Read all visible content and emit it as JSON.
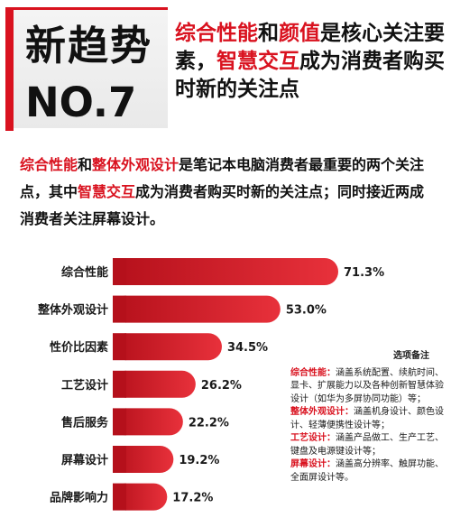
{
  "header": {
    "badge_title": "新趋势",
    "badge_number": "NO.7",
    "headline": {
      "hl1": "综合性能",
      "t1": "和",
      "hl2": "颜值",
      "t2": "是核心关注要素，",
      "hl3": "智慧交互",
      "t3": "成为消费者购买时新的关注点"
    }
  },
  "intro": {
    "hl1": "综合性能",
    "t1": "和",
    "hl2": "整体外观设计",
    "t2": "是笔记本电脑消费者最重要的两个关注点，其中",
    "hl3": "智慧交互",
    "t3": "成为消费者购买时新的关注点；同时接近两成消费者关注屏幕设计。"
  },
  "colors": {
    "accent": "#d9121f",
    "bar_dark": "#b5101b",
    "bar_light": "#e8313b",
    "text": "#1a1a1a"
  },
  "chart_data": {
    "type": "bar",
    "orientation": "horizontal",
    "categories": [
      "综合性能",
      "整体外观设计",
      "性价比因素",
      "工艺设计",
      "售后服务",
      "屏幕设计",
      "品牌影响力"
    ],
    "values": [
      71.3,
      53.0,
      34.5,
      26.2,
      22.2,
      19.2,
      17.2
    ],
    "value_labels": [
      "71.3%",
      "53.0%",
      "34.5%",
      "26.2%",
      "22.2%",
      "19.2%",
      "17.2%"
    ],
    "unit": "%",
    "xlim": [
      0,
      71.3
    ],
    "grid": false,
    "legend": "none"
  },
  "notes": {
    "title": "选项备注",
    "items": [
      {
        "key": "综合性能：",
        "text": "涵盖系统配置、续航时间、显卡、扩展能力以及各种创新智慧体验设计（如华为多屏协同功能）等；"
      },
      {
        "key": "整体外观设计：",
        "text": "涵盖机身设计、颜色设计、轻薄便携性设计等；"
      },
      {
        "key": "工艺设计：",
        "text": "涵盖产品做工、生产工艺、键盘及电源键设计等；"
      },
      {
        "key": "屏幕设计：",
        "text": "涵盖高分辨率、触屏功能、全面屏设计等。"
      }
    ]
  }
}
